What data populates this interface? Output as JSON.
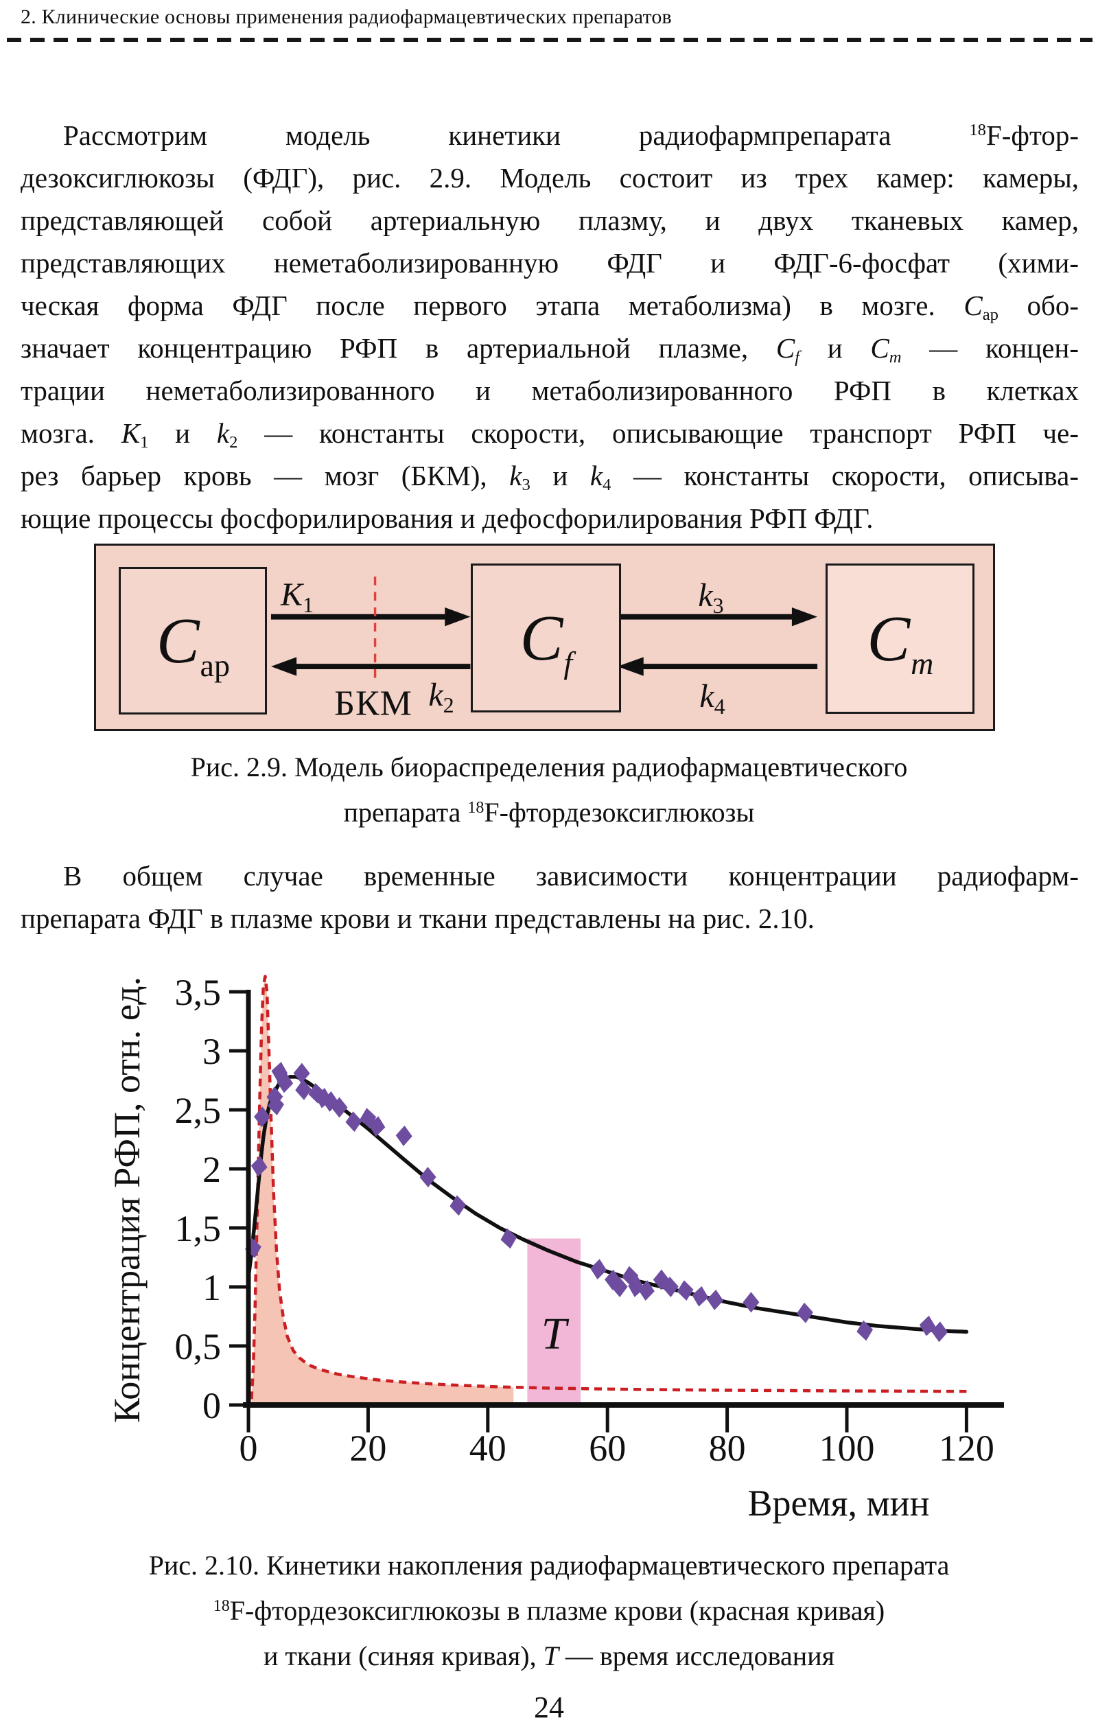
{
  "header": {
    "title": "2. Клинические основы применения радиофармацевтических препаратов"
  },
  "page": {
    "number": "24"
  },
  "paragraph1": {
    "lines": [
      [
        {
          "t": "Рассмотрим модель кинетики радиофармпрепарата ",
          "s": "n"
        },
        {
          "t": "18",
          "s": "sup"
        },
        {
          "t": "F-фтор-",
          "s": "n"
        }
      ],
      [
        {
          "t": "дезоксиглюкозы (ФДГ), рис. 2.9. Модель состоит из трех камер: камеры,",
          "s": "n"
        }
      ],
      [
        {
          "t": "представляющей собой артериальную плазму, и двух тканевых камер,",
          "s": "n"
        }
      ],
      [
        {
          "t": "представляющих неметаболизированную ФДГ и ФДГ-6-фосфат (хими-",
          "s": "n"
        }
      ],
      [
        {
          "t": "ческая форма ФДГ после первого этапа метаболизма) в мозге. ",
          "s": "n"
        },
        {
          "t": "С",
          "s": "i"
        },
        {
          "t": "ар",
          "s": "sub"
        },
        {
          "t": " обо-",
          "s": "n"
        }
      ],
      [
        {
          "t": "значает концентрацию РФП в артериальной плазме, ",
          "s": "n"
        },
        {
          "t": "C",
          "s": "i"
        },
        {
          "t": "f",
          "s": "si"
        },
        {
          "t": " и ",
          "s": "n"
        },
        {
          "t": "C",
          "s": "i"
        },
        {
          "t": "m",
          "s": "si"
        },
        {
          "t": " — концен-",
          "s": "n"
        }
      ],
      [
        {
          "t": "трации неметаболизированного и метаболизированного РФП в клетках",
          "s": "n"
        }
      ],
      [
        {
          "t": "мозга. ",
          "s": "n"
        },
        {
          "t": "K",
          "s": "i"
        },
        {
          "t": "1",
          "s": "sub"
        },
        {
          "t": " и ",
          "s": "n"
        },
        {
          "t": "k",
          "s": "i"
        },
        {
          "t": "2",
          "s": "sub"
        },
        {
          "t": " — константы скорости, описывающие транспорт РФП че-",
          "s": "n"
        }
      ],
      [
        {
          "t": "рез барьер кровь — мозг (БКМ), ",
          "s": "n"
        },
        {
          "t": "k",
          "s": "i"
        },
        {
          "t": "3",
          "s": "sub"
        },
        {
          "t": " и ",
          "s": "n"
        },
        {
          "t": "k",
          "s": "i"
        },
        {
          "t": "4",
          "s": "sub"
        },
        {
          "t": " — константы скорости, описыва-",
          "s": "n"
        }
      ],
      [
        {
          "t": "ющие процессы фосфорилирования и дефосфорилирования РФП ФДГ.",
          "s": "n"
        }
      ]
    ]
  },
  "figure29": {
    "boxes": [
      {
        "main": "С",
        "sub": "ар"
      },
      {
        "main": "C",
        "sub": "f"
      },
      {
        "main": "C",
        "sub": "m"
      }
    ],
    "rate_constants": {
      "k1": {
        "base": "K",
        "sub": "1"
      },
      "k2": {
        "base": "k",
        "sub": "2"
      },
      "k3": {
        "base": "k",
        "sub": "3"
      },
      "k4": {
        "base": "k",
        "sub": "4"
      }
    },
    "bbb_label": "БКМ",
    "colors": {
      "background": "#f3d2c8",
      "box_fill": "#f5d6cc",
      "box_fill_right": "#f8ded5",
      "border": "#1a1a1a",
      "bbb_line": "#e04038"
    }
  },
  "caption29": {
    "lines": [
      [
        {
          "t": "Рис. 2.9. Модель биораспределения радиофармацевтического",
          "s": "n"
        }
      ],
      [
        {
          "t": "препарата ",
          "s": "n"
        },
        {
          "t": "18",
          "s": "sup"
        },
        {
          "t": "F-фтордезоксиглюкозы",
          "s": "n"
        }
      ]
    ]
  },
  "paragraph2": {
    "lines": [
      [
        {
          "t": "В общем случае временные зависимости концентрации радиофарм-",
          "s": "n"
        }
      ],
      [
        {
          "t": "препарата ФДГ в плазме крови и ткани представлены на рис. 2.10.",
          "s": "n"
        }
      ]
    ]
  },
  "chart_data": {
    "type": "line",
    "title": "",
    "xlabel": "Время, мин",
    "ylabel": "Концентрация РФП, отн. ед.",
    "xlim": [
      0,
      120
    ],
    "ylim": [
      0,
      3.65
    ],
    "xticks": [
      0,
      20,
      40,
      60,
      80,
      100,
      120
    ],
    "yticks": [
      0,
      0.5,
      1,
      1.5,
      2,
      2.5,
      3,
      3.5
    ],
    "ytick_labels": [
      "0",
      "0,5",
      "1",
      "1,5",
      "2",
      "2,5",
      "3",
      "3,5"
    ],
    "grid": false,
    "legend": "none",
    "series": [
      {
        "name": "плазма крови (красная кривая)",
        "type": "line",
        "style": "dashed",
        "color": "#cb1f24",
        "fill_color": "#f6c4b4",
        "fill_until_x": 44.3,
        "points": [
          [
            0.5,
            0.05
          ],
          [
            0.8,
            0.3
          ],
          [
            1.1,
            0.8
          ],
          [
            1.5,
            1.7
          ],
          [
            1.9,
            2.6
          ],
          [
            2.2,
            3.2
          ],
          [
            2.5,
            3.55
          ],
          [
            2.8,
            3.63
          ],
          [
            3.1,
            3.5
          ],
          [
            3.4,
            3.05
          ],
          [
            3.8,
            2.4
          ],
          [
            4.2,
            1.8
          ],
          [
            4.7,
            1.3
          ],
          [
            5.2,
            0.97
          ],
          [
            5.8,
            0.75
          ],
          [
            6.5,
            0.58
          ],
          [
            7.5,
            0.46
          ],
          [
            8.5,
            0.4
          ],
          [
            10,
            0.34
          ],
          [
            12,
            0.3
          ],
          [
            15,
            0.26
          ],
          [
            18,
            0.235
          ],
          [
            22,
            0.21
          ],
          [
            26,
            0.193
          ],
          [
            30,
            0.18
          ],
          [
            35,
            0.167
          ],
          [
            40,
            0.157
          ],
          [
            44.3,
            0.15
          ],
          [
            50,
            0.143
          ],
          [
            55,
            0.139
          ],
          [
            60,
            0.135
          ],
          [
            70,
            0.129
          ],
          [
            80,
            0.125
          ],
          [
            90,
            0.122
          ],
          [
            100,
            0.119
          ],
          [
            110,
            0.117
          ],
          [
            120,
            0.115
          ]
        ]
      },
      {
        "name": "ткань (синяя кривая)",
        "type": "line",
        "style": "solid",
        "color": "#101010",
        "points": [
          [
            0,
            1.08
          ],
          [
            0.5,
            1.28
          ],
          [
            1,
            1.52
          ],
          [
            1.5,
            1.78
          ],
          [
            2,
            2.05
          ],
          [
            2.5,
            2.27
          ],
          [
            3,
            2.43
          ],
          [
            3.5,
            2.54
          ],
          [
            4,
            2.62
          ],
          [
            5,
            2.71
          ],
          [
            6,
            2.76
          ],
          [
            7,
            2.78
          ],
          [
            8,
            2.78
          ],
          [
            9,
            2.76
          ],
          [
            10,
            2.73
          ],
          [
            12,
            2.66
          ],
          [
            14,
            2.58
          ],
          [
            16,
            2.5
          ],
          [
            18,
            2.42
          ],
          [
            20,
            2.34
          ],
          [
            23,
            2.21
          ],
          [
            26,
            2.08
          ],
          [
            30,
            1.91
          ],
          [
            34,
            1.76
          ],
          [
            38,
            1.62
          ],
          [
            42,
            1.5
          ],
          [
            46,
            1.4
          ],
          [
            50,
            1.31
          ],
          [
            55,
            1.21
          ],
          [
            60,
            1.13
          ],
          [
            65,
            1.05
          ],
          [
            70,
            0.99
          ],
          [
            75,
            0.93
          ],
          [
            80,
            0.87
          ],
          [
            85,
            0.82
          ],
          [
            90,
            0.78
          ],
          [
            95,
            0.74
          ],
          [
            100,
            0.7
          ],
          [
            105,
            0.67
          ],
          [
            110,
            0.65
          ],
          [
            115,
            0.63
          ],
          [
            120,
            0.62
          ]
        ]
      },
      {
        "name": "экспериментальные точки",
        "type": "scatter",
        "marker": "diamond",
        "color": "#6e4da0",
        "points": [
          [
            0.8,
            1.33
          ],
          [
            1.8,
            2.02
          ],
          [
            2.3,
            2.44
          ],
          [
            4.4,
            2.61
          ],
          [
            4.6,
            2.54
          ],
          [
            5.2,
            2.82
          ],
          [
            6.1,
            2.73
          ],
          [
            8.9,
            2.81
          ],
          [
            9.2,
            2.67
          ],
          [
            11.4,
            2.64
          ],
          [
            12.5,
            2.6
          ],
          [
            13.7,
            2.57
          ],
          [
            15.2,
            2.52
          ],
          [
            17.6,
            2.4
          ],
          [
            20,
            2.43
          ],
          [
            21.5,
            2.36
          ],
          [
            26,
            2.28
          ],
          [
            30,
            1.93
          ],
          [
            35,
            1.69
          ],
          [
            43.5,
            1.41
          ],
          [
            58.5,
            1.15
          ],
          [
            60.9,
            1.06
          ],
          [
            62,
            1.0
          ],
          [
            63.8,
            1.09
          ],
          [
            64.8,
            1.0
          ],
          [
            66.5,
            0.97
          ],
          [
            69,
            1.06
          ],
          [
            70.5,
            1.0
          ],
          [
            73,
            0.97
          ],
          [
            75.5,
            0.92
          ],
          [
            78,
            0.89
          ],
          [
            84,
            0.87
          ],
          [
            93,
            0.78
          ],
          [
            103,
            0.63
          ],
          [
            113.5,
            0.67
          ],
          [
            115.5,
            0.62
          ]
        ]
      }
    ],
    "annotation": {
      "label": "T",
      "band_x": [
        46.6,
        55.5
      ],
      "band_top": 1.41,
      "band_color": "#f2b6d7"
    }
  },
  "caption210": {
    "lines": [
      [
        {
          "t": "Рис. 2.10. Кинетики накопления радиофармацевтического препарата",
          "s": "n"
        }
      ],
      [
        {
          "t": "18",
          "s": "sup"
        },
        {
          "t": "F-фтордезоксиглюкозы в плазме крови (красная кривая)",
          "s": "n"
        }
      ],
      [
        {
          "t": "и ткани (синяя кривая), ",
          "s": "n"
        },
        {
          "t": "T",
          "s": "i"
        },
        {
          "t": " — время исследования",
          "s": "n"
        }
      ]
    ]
  }
}
